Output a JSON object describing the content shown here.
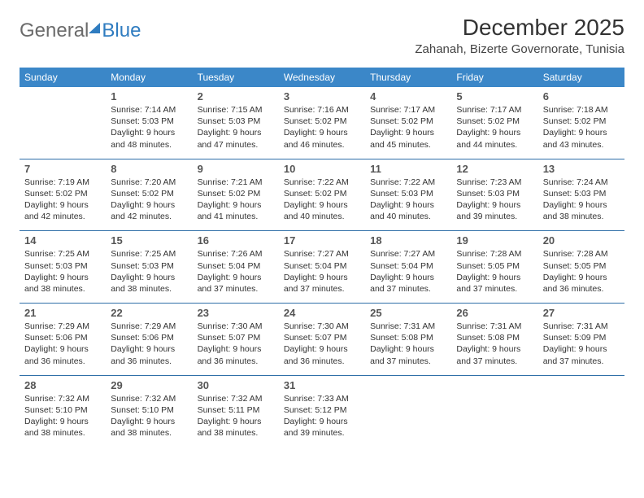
{
  "logo": {
    "part1": "General",
    "part2": "Blue"
  },
  "title": "December 2025",
  "location": "Zahanah, Bizerte Governorate, Tunisia",
  "colors": {
    "header_bg": "#3b87c8",
    "header_text": "#ffffff",
    "row_border": "#2f6fa8",
    "logo_gray": "#6b6b6b",
    "logo_blue": "#2f7cc0"
  },
  "weekdays": [
    "Sunday",
    "Monday",
    "Tuesday",
    "Wednesday",
    "Thursday",
    "Friday",
    "Saturday"
  ],
  "cells": [
    [
      {},
      {
        "n": "1",
        "sr": "Sunrise: 7:14 AM",
        "ss": "Sunset: 5:03 PM",
        "d1": "Daylight: 9 hours",
        "d2": "and 48 minutes."
      },
      {
        "n": "2",
        "sr": "Sunrise: 7:15 AM",
        "ss": "Sunset: 5:03 PM",
        "d1": "Daylight: 9 hours",
        "d2": "and 47 minutes."
      },
      {
        "n": "3",
        "sr": "Sunrise: 7:16 AM",
        "ss": "Sunset: 5:02 PM",
        "d1": "Daylight: 9 hours",
        "d2": "and 46 minutes."
      },
      {
        "n": "4",
        "sr": "Sunrise: 7:17 AM",
        "ss": "Sunset: 5:02 PM",
        "d1": "Daylight: 9 hours",
        "d2": "and 45 minutes."
      },
      {
        "n": "5",
        "sr": "Sunrise: 7:17 AM",
        "ss": "Sunset: 5:02 PM",
        "d1": "Daylight: 9 hours",
        "d2": "and 44 minutes."
      },
      {
        "n": "6",
        "sr": "Sunrise: 7:18 AM",
        "ss": "Sunset: 5:02 PM",
        "d1": "Daylight: 9 hours",
        "d2": "and 43 minutes."
      }
    ],
    [
      {
        "n": "7",
        "sr": "Sunrise: 7:19 AM",
        "ss": "Sunset: 5:02 PM",
        "d1": "Daylight: 9 hours",
        "d2": "and 42 minutes."
      },
      {
        "n": "8",
        "sr": "Sunrise: 7:20 AM",
        "ss": "Sunset: 5:02 PM",
        "d1": "Daylight: 9 hours",
        "d2": "and 42 minutes."
      },
      {
        "n": "9",
        "sr": "Sunrise: 7:21 AM",
        "ss": "Sunset: 5:02 PM",
        "d1": "Daylight: 9 hours",
        "d2": "and 41 minutes."
      },
      {
        "n": "10",
        "sr": "Sunrise: 7:22 AM",
        "ss": "Sunset: 5:02 PM",
        "d1": "Daylight: 9 hours",
        "d2": "and 40 minutes."
      },
      {
        "n": "11",
        "sr": "Sunrise: 7:22 AM",
        "ss": "Sunset: 5:03 PM",
        "d1": "Daylight: 9 hours",
        "d2": "and 40 minutes."
      },
      {
        "n": "12",
        "sr": "Sunrise: 7:23 AM",
        "ss": "Sunset: 5:03 PM",
        "d1": "Daylight: 9 hours",
        "d2": "and 39 minutes."
      },
      {
        "n": "13",
        "sr": "Sunrise: 7:24 AM",
        "ss": "Sunset: 5:03 PM",
        "d1": "Daylight: 9 hours",
        "d2": "and 38 minutes."
      }
    ],
    [
      {
        "n": "14",
        "sr": "Sunrise: 7:25 AM",
        "ss": "Sunset: 5:03 PM",
        "d1": "Daylight: 9 hours",
        "d2": "and 38 minutes."
      },
      {
        "n": "15",
        "sr": "Sunrise: 7:25 AM",
        "ss": "Sunset: 5:03 PM",
        "d1": "Daylight: 9 hours",
        "d2": "and 38 minutes."
      },
      {
        "n": "16",
        "sr": "Sunrise: 7:26 AM",
        "ss": "Sunset: 5:04 PM",
        "d1": "Daylight: 9 hours",
        "d2": "and 37 minutes."
      },
      {
        "n": "17",
        "sr": "Sunrise: 7:27 AM",
        "ss": "Sunset: 5:04 PM",
        "d1": "Daylight: 9 hours",
        "d2": "and 37 minutes."
      },
      {
        "n": "18",
        "sr": "Sunrise: 7:27 AM",
        "ss": "Sunset: 5:04 PM",
        "d1": "Daylight: 9 hours",
        "d2": "and 37 minutes."
      },
      {
        "n": "19",
        "sr": "Sunrise: 7:28 AM",
        "ss": "Sunset: 5:05 PM",
        "d1": "Daylight: 9 hours",
        "d2": "and 37 minutes."
      },
      {
        "n": "20",
        "sr": "Sunrise: 7:28 AM",
        "ss": "Sunset: 5:05 PM",
        "d1": "Daylight: 9 hours",
        "d2": "and 36 minutes."
      }
    ],
    [
      {
        "n": "21",
        "sr": "Sunrise: 7:29 AM",
        "ss": "Sunset: 5:06 PM",
        "d1": "Daylight: 9 hours",
        "d2": "and 36 minutes."
      },
      {
        "n": "22",
        "sr": "Sunrise: 7:29 AM",
        "ss": "Sunset: 5:06 PM",
        "d1": "Daylight: 9 hours",
        "d2": "and 36 minutes."
      },
      {
        "n": "23",
        "sr": "Sunrise: 7:30 AM",
        "ss": "Sunset: 5:07 PM",
        "d1": "Daylight: 9 hours",
        "d2": "and 36 minutes."
      },
      {
        "n": "24",
        "sr": "Sunrise: 7:30 AM",
        "ss": "Sunset: 5:07 PM",
        "d1": "Daylight: 9 hours",
        "d2": "and 36 minutes."
      },
      {
        "n": "25",
        "sr": "Sunrise: 7:31 AM",
        "ss": "Sunset: 5:08 PM",
        "d1": "Daylight: 9 hours",
        "d2": "and 37 minutes."
      },
      {
        "n": "26",
        "sr": "Sunrise: 7:31 AM",
        "ss": "Sunset: 5:08 PM",
        "d1": "Daylight: 9 hours",
        "d2": "and 37 minutes."
      },
      {
        "n": "27",
        "sr": "Sunrise: 7:31 AM",
        "ss": "Sunset: 5:09 PM",
        "d1": "Daylight: 9 hours",
        "d2": "and 37 minutes."
      }
    ],
    [
      {
        "n": "28",
        "sr": "Sunrise: 7:32 AM",
        "ss": "Sunset: 5:10 PM",
        "d1": "Daylight: 9 hours",
        "d2": "and 38 minutes."
      },
      {
        "n": "29",
        "sr": "Sunrise: 7:32 AM",
        "ss": "Sunset: 5:10 PM",
        "d1": "Daylight: 9 hours",
        "d2": "and 38 minutes."
      },
      {
        "n": "30",
        "sr": "Sunrise: 7:32 AM",
        "ss": "Sunset: 5:11 PM",
        "d1": "Daylight: 9 hours",
        "d2": "and 38 minutes."
      },
      {
        "n": "31",
        "sr": "Sunrise: 7:33 AM",
        "ss": "Sunset: 5:12 PM",
        "d1": "Daylight: 9 hours",
        "d2": "and 39 minutes."
      },
      {},
      {},
      {}
    ]
  ]
}
